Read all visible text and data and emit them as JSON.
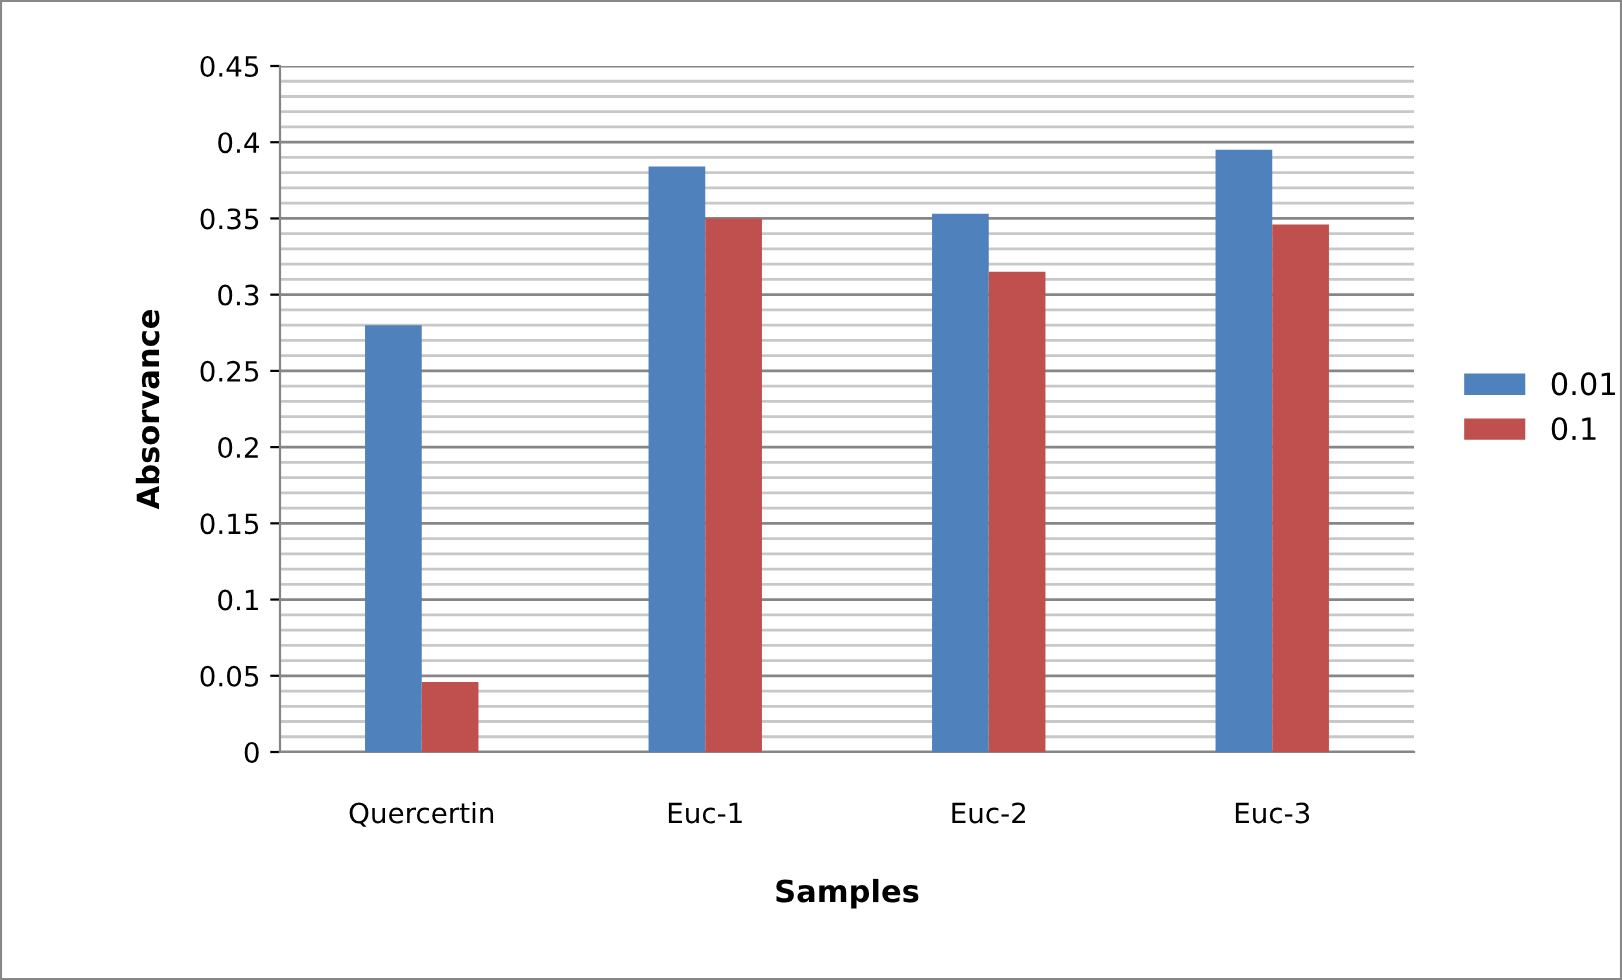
{
  "chart_data": {
    "type": "bar",
    "xlabel": "Samples",
    "ylabel": "Absorvance",
    "categories": [
      "Quercertin",
      "Euc-1",
      "Euc-2",
      "Euc-3"
    ],
    "series": [
      {
        "name": "0.01",
        "color": "#4f81bd",
        "values": [
          0.28,
          0.384,
          0.353,
          0.395
        ]
      },
      {
        "name": "0.1",
        "color": "#c0504d",
        "values": [
          0.046,
          0.35,
          0.315,
          0.346
        ]
      }
    ],
    "ylim": [
      0,
      0.45
    ],
    "yticks": [
      0,
      0.05,
      0.1,
      0.15,
      0.2,
      0.25,
      0.3,
      0.35,
      0.4,
      0.45
    ],
    "grid": "y",
    "legend": "right"
  }
}
